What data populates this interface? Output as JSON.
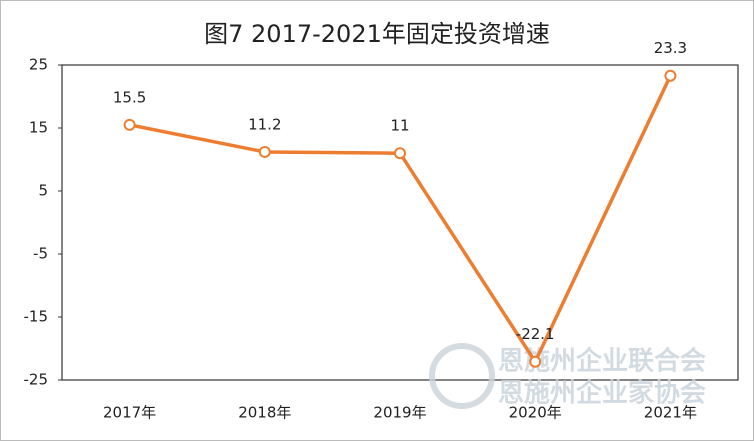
{
  "chart_data": {
    "type": "line",
    "title": "图7 2017-2021年固定投资增速",
    "categories": [
      "2017年",
      "2018年",
      "2019年",
      "2020年",
      "2021年"
    ],
    "series": [
      {
        "name": "固定投资增速",
        "color": "#ed7d31",
        "values": [
          15.5,
          11.2,
          11.0,
          -22.1,
          23.3
        ]
      }
    ],
    "ylim": [
      -25,
      25
    ],
    "yticks": [
      25,
      15,
      5,
      -5,
      -15,
      -25
    ],
    "grid": false,
    "watermark": [
      "恩施州企业联合会",
      "恩施州企业家协会"
    ]
  }
}
